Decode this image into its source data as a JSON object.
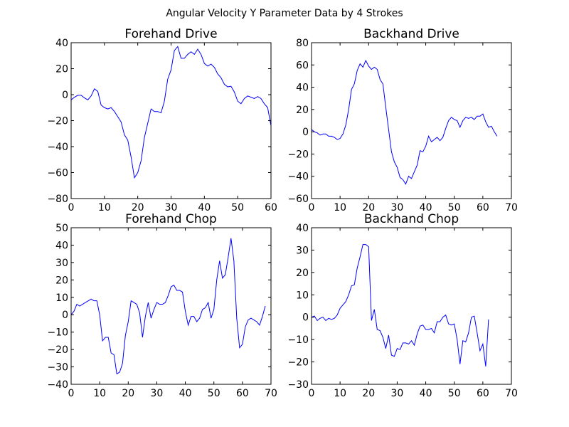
{
  "figure": {
    "suptitle": "Angular Velocity Y Parameter Data by 4 Strokes"
  },
  "chart_data": [
    {
      "type": "line",
      "title": "Forehand Drive",
      "xlabel": "",
      "ylabel": "",
      "xlim": [
        0,
        60
      ],
      "ylim": [
        -80,
        40
      ],
      "xticks": [
        0,
        10,
        20,
        30,
        40,
        50,
        60
      ],
      "yticks": [
        -80,
        -60,
        -40,
        -20,
        0,
        20,
        40
      ],
      "color": "#0000ff",
      "x": [
        0,
        1,
        2,
        3,
        4,
        5,
        6,
        7,
        8,
        9,
        10,
        11,
        12,
        13,
        14,
        15,
        16,
        17,
        18,
        19,
        20,
        21,
        22,
        23,
        24,
        25,
        26,
        27,
        28,
        29,
        30,
        31,
        32,
        33,
        34,
        35,
        36,
        37,
        38,
        39,
        40,
        41,
        42,
        43,
        44,
        45,
        46,
        47,
        48,
        49,
        50,
        51,
        52,
        53,
        54,
        55,
        56,
        57,
        58,
        59,
        60
      ],
      "y": [
        -4,
        -2,
        -0.5,
        -0.5,
        -2.5,
        -4,
        -1,
        4.5,
        2.5,
        -8,
        -10,
        -11,
        -10,
        -13,
        -17,
        -21,
        -31,
        -35,
        -48,
        -64,
        -60,
        -51,
        -33,
        -22,
        -11,
        -13,
        -13,
        -14,
        -5,
        12,
        19,
        34,
        37,
        28,
        28,
        31,
        33,
        31,
        35,
        31,
        24,
        22,
        23.5,
        21,
        16,
        13,
        8,
        6,
        6.5,
        2,
        -5,
        -7,
        -3,
        -1,
        -2,
        -3,
        -1.5,
        -3,
        -7,
        -10,
        -24
      ]
    },
    {
      "type": "line",
      "title": "Backhand Drive",
      "xlabel": "",
      "ylabel": "",
      "xlim": [
        0,
        70
      ],
      "ylim": [
        -60,
        80
      ],
      "xticks": [
        0,
        10,
        20,
        30,
        40,
        50,
        60,
        70
      ],
      "yticks": [
        -60,
        -40,
        -20,
        0,
        20,
        40,
        60,
        80
      ],
      "color": "#0000ff",
      "x": [
        0,
        1,
        2,
        3,
        4,
        5,
        6,
        7,
        8,
        9,
        10,
        11,
        12,
        13,
        14,
        15,
        16,
        17,
        18,
        19,
        20,
        21,
        22,
        23,
        24,
        25,
        26,
        27,
        28,
        29,
        30,
        31,
        32,
        33,
        34,
        35,
        36,
        37,
        38,
        39,
        40,
        41,
        42,
        43,
        44,
        45,
        46,
        47,
        48,
        49,
        50,
        51,
        52,
        53,
        54,
        55,
        56,
        57,
        58,
        59,
        60,
        61,
        62,
        63,
        64,
        65
      ],
      "y": [
        2,
        0,
        -1,
        -3,
        -2,
        -2,
        -4,
        -4,
        -5,
        -7,
        -6,
        -2,
        6,
        20,
        38,
        43,
        55,
        61,
        58,
        64,
        59,
        56,
        58,
        56,
        47,
        43,
        22,
        2,
        -18,
        -27,
        -32,
        -41,
        -43,
        -47,
        -40,
        -42,
        -36,
        -30,
        -17,
        -18,
        -13,
        -4,
        -9,
        -7,
        -5,
        -8,
        -5,
        3,
        10,
        13,
        11,
        10,
        4,
        10,
        13,
        12,
        13,
        11,
        14,
        14,
        16,
        9,
        4,
        5,
        0,
        -4
      ]
    },
    {
      "type": "line",
      "title": "Forehand Chop",
      "xlabel": "",
      "ylabel": "",
      "xlim": [
        0,
        70
      ],
      "ylim": [
        -40,
        50
      ],
      "xticks": [
        0,
        10,
        20,
        30,
        40,
        50,
        60,
        70
      ],
      "yticks": [
        -40,
        -30,
        -20,
        -10,
        0,
        10,
        20,
        30,
        40,
        50
      ],
      "color": "#0000ff",
      "x": [
        0,
        1,
        2,
        3,
        4,
        5,
        6,
        7,
        8,
        9,
        10,
        11,
        12,
        13,
        14,
        15,
        16,
        17,
        18,
        19,
        20,
        21,
        22,
        23,
        24,
        25,
        26,
        27,
        28,
        29,
        30,
        31,
        32,
        33,
        34,
        35,
        36,
        37,
        38,
        39,
        40,
        41,
        42,
        43,
        44,
        45,
        46,
        47,
        48,
        49,
        50,
        51,
        52,
        53,
        54,
        55,
        56,
        57,
        58,
        59,
        60,
        61,
        62,
        63,
        64,
        65,
        66,
        67,
        68
      ],
      "y": [
        0,
        2,
        6,
        5,
        6,
        7,
        8,
        9,
        8,
        8,
        0,
        -15,
        -13,
        -13,
        -22,
        -23,
        -34,
        -33,
        -28,
        -12,
        -4,
        8,
        7,
        6,
        1,
        -13,
        -1,
        7,
        -2,
        3,
        7,
        6,
        6,
        7,
        11,
        16,
        17,
        14,
        14,
        13,
        2,
        -6,
        -1,
        -1,
        -4,
        -2,
        3,
        4,
        7,
        -2,
        3,
        20,
        31,
        21,
        23,
        33,
        44,
        31,
        -2,
        -19,
        -17,
        -7,
        -3,
        -2,
        -3,
        -4,
        -6,
        -1,
        5
      ]
    },
    {
      "type": "line",
      "title": "Backhand Chop",
      "xlabel": "",
      "ylabel": "",
      "xlim": [
        0,
        70
      ],
      "ylim": [
        -30,
        40
      ],
      "xticks": [
        0,
        10,
        20,
        30,
        40,
        50,
        60,
        70
      ],
      "yticks": [
        -30,
        -20,
        -10,
        0,
        10,
        20,
        30,
        40
      ],
      "color": "#0000ff",
      "x": [
        0,
        1,
        2,
        3,
        4,
        5,
        6,
        7,
        8,
        9,
        10,
        11,
        12,
        13,
        14,
        15,
        16,
        17,
        18,
        19,
        20,
        21,
        22,
        23,
        24,
        25,
        26,
        27,
        28,
        29,
        30,
        31,
        32,
        33,
        34,
        35,
        36,
        37,
        38,
        39,
        40,
        41,
        42,
        43,
        44,
        45,
        46,
        47,
        48,
        49,
        50,
        51,
        52,
        53,
        54,
        55,
        56,
        57,
        58,
        59,
        60,
        61,
        62
      ],
      "y": [
        0,
        0.5,
        -1.5,
        -0.5,
        0,
        -1.5,
        -0.5,
        -1,
        -0.5,
        1,
        4,
        5.5,
        7,
        10,
        14,
        14.5,
        22,
        27,
        32.5,
        32.5,
        31.5,
        -1.5,
        3.5,
        -5.5,
        -6,
        -9,
        -14,
        -8,
        -17,
        -17.5,
        -14,
        -14.5,
        -11.5,
        -11.5,
        -12,
        -10.5,
        -12.5,
        -7.5,
        -4,
        -3.5,
        -5.5,
        -5.5,
        -5,
        -7,
        -2,
        -2,
        0,
        1,
        -3,
        -3.5,
        -3,
        -10,
        -21,
        -10.5,
        -11,
        -7,
        0,
        0.5,
        -7,
        -15,
        -12,
        -22,
        -1
      ]
    }
  ]
}
